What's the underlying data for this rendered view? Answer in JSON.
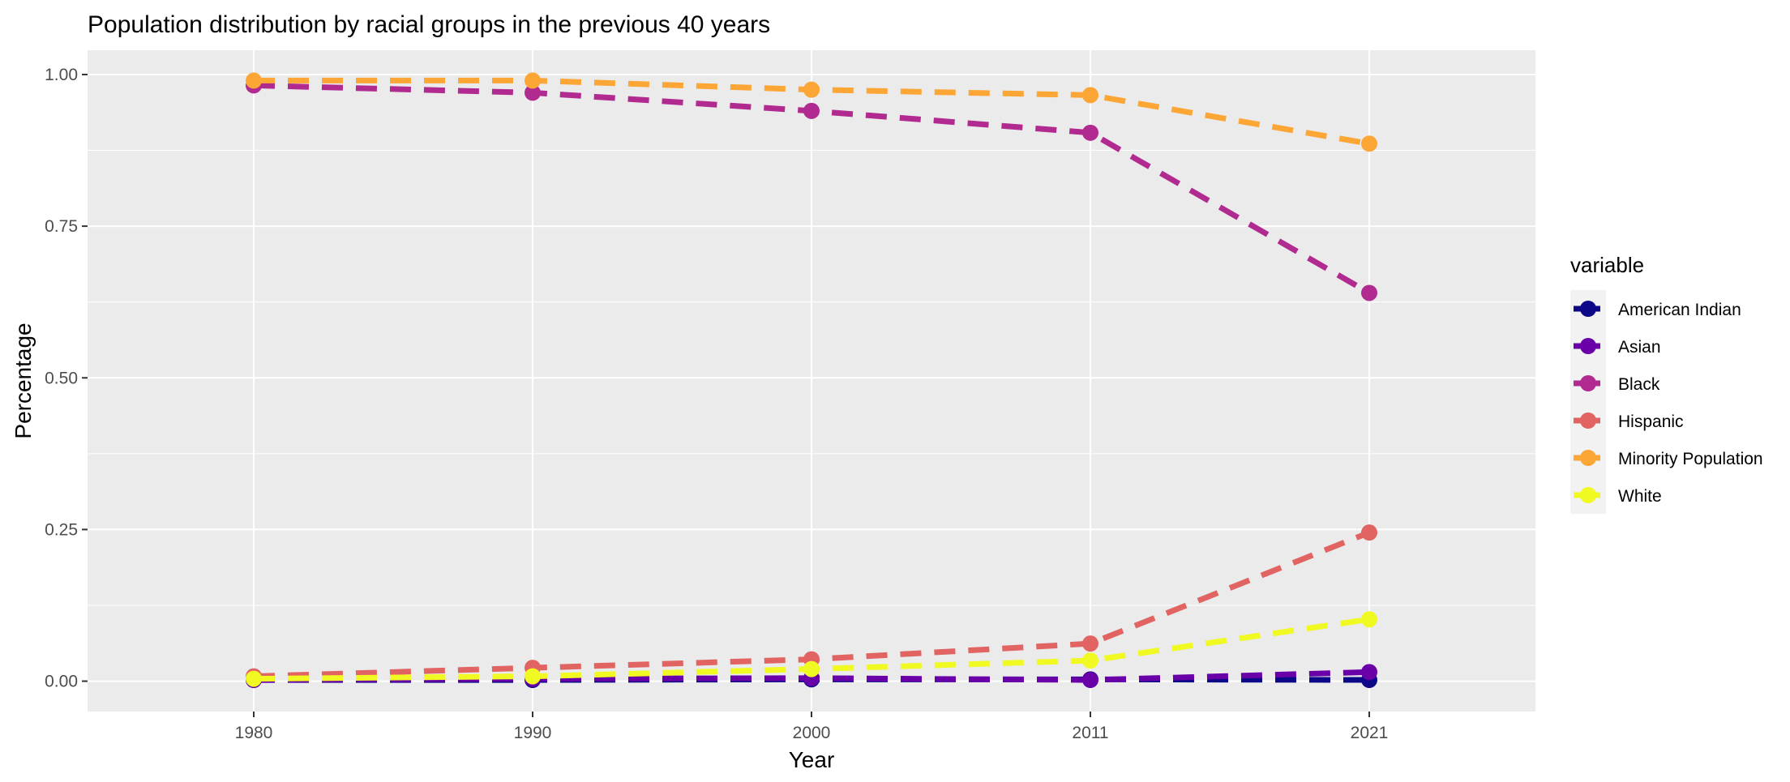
{
  "chart_data": {
    "type": "line",
    "title": "Population distribution by racial groups in the previous 40 years",
    "xlabel": "Year",
    "ylabel": "Percentage",
    "categories": [
      "1980",
      "1990",
      "2000",
      "2011",
      "2021"
    ],
    "ylim": [
      -0.05,
      1.04
    ],
    "yticks": [
      0.0,
      0.25,
      0.5,
      0.75,
      1.0
    ],
    "ytick_labels": [
      "0.00",
      "0.25",
      "0.50",
      "0.75",
      "1.00"
    ],
    "grid": true,
    "legend_title": "variable",
    "legend_position": "right",
    "series": [
      {
        "name": "American Indian",
        "color": "#0d0887",
        "values": [
          0.002,
          0.002,
          0.003,
          0.003,
          0.002
        ]
      },
      {
        "name": "Asian",
        "color": "#6a00a8",
        "values": [
          0.002,
          0.004,
          0.005,
          0.002,
          0.015
        ]
      },
      {
        "name": "Black",
        "color": "#b12a90",
        "values": [
          0.982,
          0.97,
          0.94,
          0.904,
          0.64
        ]
      },
      {
        "name": "Hispanic",
        "color": "#e16462",
        "values": [
          0.008,
          0.022,
          0.036,
          0.062,
          0.245
        ]
      },
      {
        "name": "Minority Population",
        "color": "#fca636",
        "values": [
          0.99,
          0.99,
          0.975,
          0.966,
          0.886
        ]
      },
      {
        "name": "White",
        "color": "#f0f921",
        "values": [
          0.004,
          0.008,
          0.02,
          0.034,
          0.102
        ]
      }
    ]
  }
}
